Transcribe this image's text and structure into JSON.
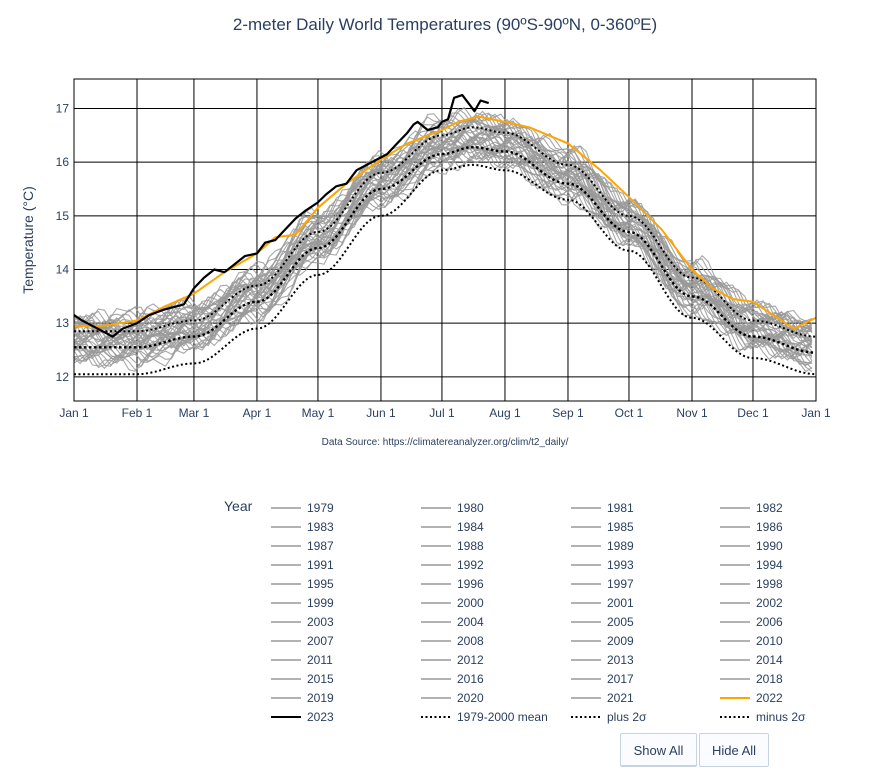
{
  "chart_data": {
    "type": "line",
    "title": "2-meter Daily World Temperatures (90ºS-90ºN, 0-360ºE)",
    "ylabel": "Temperature (°C)",
    "xlabel": "",
    "source_note": "Data Source: https://climatereanalyzer.org/clim/t2_daily/",
    "x_ticks": [
      "Jan 1",
      "Feb 1",
      "Mar 1",
      "Apr 1",
      "May 1",
      "Jun 1",
      "Jul 1",
      "Aug 1",
      "Sep 1",
      "Oct 1",
      "Nov 1",
      "Dec 1",
      "Jan 1"
    ],
    "x_tick_days": [
      1,
      32,
      60,
      91,
      121,
      152,
      182,
      213,
      244,
      274,
      305,
      335,
      366
    ],
    "y_ticks": [
      12,
      13,
      14,
      15,
      16,
      17
    ],
    "xlim": [
      1,
      366
    ],
    "ylim": [
      11.55,
      17.55
    ],
    "grid": true,
    "legend_placement": "bottom",
    "x_unit": "day of year",
    "series": [
      {
        "name": "1979-2000 mean",
        "x": [
          1,
          32,
          60,
          91,
          121,
          152,
          182,
          197,
          213,
          244,
          274,
          305,
          335,
          366
        ],
        "y": [
          12.55,
          12.55,
          12.75,
          13.4,
          14.4,
          15.5,
          16.15,
          16.28,
          16.2,
          15.6,
          14.7,
          13.5,
          12.75,
          12.45
        ]
      },
      {
        "name": "plus 2σ",
        "x": [
          1,
          32,
          60,
          91,
          121,
          152,
          182,
          197,
          213,
          244,
          274,
          305,
          335,
          366
        ],
        "y": [
          12.85,
          12.85,
          13.05,
          13.7,
          14.7,
          15.8,
          16.5,
          16.65,
          16.55,
          15.95,
          15.0,
          13.85,
          13.05,
          12.75
        ]
      },
      {
        "name": "minus 2σ",
        "x": [
          1,
          32,
          60,
          91,
          121,
          152,
          182,
          197,
          213,
          244,
          274,
          305,
          335,
          366
        ],
        "y": [
          12.05,
          12.05,
          12.25,
          12.9,
          13.9,
          15.0,
          15.85,
          15.95,
          15.85,
          15.3,
          14.35,
          13.1,
          12.35,
          12.05
        ]
      },
      {
        "name": "2022",
        "x": [
          1,
          15,
          32,
          45,
          60,
          75,
          91,
          100,
          110,
          121,
          135,
          152,
          165,
          182,
          190,
          200,
          213,
          225,
          244,
          260,
          274,
          290,
          305,
          315,
          325,
          335,
          345,
          355,
          366
        ],
        "y": [
          12.95,
          12.95,
          13.05,
          13.3,
          13.55,
          13.95,
          14.3,
          14.6,
          14.65,
          15.15,
          15.6,
          16.05,
          16.35,
          16.6,
          16.75,
          16.85,
          16.75,
          16.65,
          16.35,
          15.85,
          15.35,
          14.75,
          14.0,
          13.65,
          13.45,
          13.4,
          13.15,
          12.9,
          13.1
        ]
      },
      {
        "name": "2023",
        "x": [
          1,
          5,
          10,
          15,
          20,
          25,
          32,
          38,
          45,
          50,
          55,
          60,
          65,
          70,
          75,
          80,
          85,
          91,
          95,
          100,
          105,
          110,
          115,
          121,
          125,
          130,
          135,
          140,
          145,
          150,
          155,
          160,
          165,
          168,
          170,
          175,
          180,
          182,
          185,
          188,
          192,
          195,
          198,
          201,
          205
        ],
        "y": [
          13.15,
          13.05,
          12.95,
          12.85,
          12.75,
          12.9,
          13.0,
          13.15,
          13.25,
          13.3,
          13.35,
          13.65,
          13.85,
          14.0,
          13.95,
          14.1,
          14.25,
          14.3,
          14.5,
          14.55,
          14.75,
          14.95,
          15.1,
          15.25,
          15.4,
          15.55,
          15.6,
          15.85,
          15.95,
          16.05,
          16.15,
          16.35,
          16.55,
          16.7,
          16.75,
          16.6,
          16.65,
          16.75,
          16.8,
          17.2,
          17.25,
          17.1,
          16.95,
          17.15,
          17.1
        ]
      }
    ],
    "background_years": [
      "1979",
      "1980",
      "1981",
      "1982",
      "1983",
      "1984",
      "1985",
      "1986",
      "1987",
      "1988",
      "1989",
      "1990",
      "1991",
      "1992",
      "1993",
      "1994",
      "1995",
      "1996",
      "1997",
      "1998",
      "1999",
      "2000",
      "2001",
      "2002",
      "2003",
      "2004",
      "2005",
      "2006",
      "2007",
      "2008",
      "2009",
      "2010",
      "2011",
      "2012",
      "2013",
      "2014",
      "2015",
      "2016",
      "2017",
      "2018",
      "2019",
      "2020",
      "2021"
    ]
  },
  "colors": {
    "year": "#999999",
    "year_2022": "#ffa500",
    "year_2023": "#000000",
    "stat": "#000000"
  },
  "legend": {
    "title": "Year",
    "items": [
      {
        "label": "1979",
        "style": "year"
      },
      {
        "label": "1980",
        "style": "year"
      },
      {
        "label": "1981",
        "style": "year"
      },
      {
        "label": "1982",
        "style": "year"
      },
      {
        "label": "1983",
        "style": "year"
      },
      {
        "label": "1984",
        "style": "year"
      },
      {
        "label": "1985",
        "style": "year"
      },
      {
        "label": "1986",
        "style": "year"
      },
      {
        "label": "1987",
        "style": "year"
      },
      {
        "label": "1988",
        "style": "year"
      },
      {
        "label": "1989",
        "style": "year"
      },
      {
        "label": "1990",
        "style": "year"
      },
      {
        "label": "1991",
        "style": "year"
      },
      {
        "label": "1992",
        "style": "year"
      },
      {
        "label": "1993",
        "style": "year"
      },
      {
        "label": "1994",
        "style": "year"
      },
      {
        "label": "1995",
        "style": "year"
      },
      {
        "label": "1996",
        "style": "year"
      },
      {
        "label": "1997",
        "style": "year"
      },
      {
        "label": "1998",
        "style": "year"
      },
      {
        "label": "1999",
        "style": "year"
      },
      {
        "label": "2000",
        "style": "year"
      },
      {
        "label": "2001",
        "style": "year"
      },
      {
        "label": "2002",
        "style": "year"
      },
      {
        "label": "2003",
        "style": "year"
      },
      {
        "label": "2004",
        "style": "year"
      },
      {
        "label": "2005",
        "style": "year"
      },
      {
        "label": "2006",
        "style": "year"
      },
      {
        "label": "2007",
        "style": "year"
      },
      {
        "label": "2008",
        "style": "year"
      },
      {
        "label": "2009",
        "style": "year"
      },
      {
        "label": "2010",
        "style": "year"
      },
      {
        "label": "2011",
        "style": "year"
      },
      {
        "label": "2012",
        "style": "year"
      },
      {
        "label": "2013",
        "style": "year"
      },
      {
        "label": "2014",
        "style": "year"
      },
      {
        "label": "2015",
        "style": "year"
      },
      {
        "label": "2016",
        "style": "year"
      },
      {
        "label": "2017",
        "style": "year"
      },
      {
        "label": "2018",
        "style": "year"
      },
      {
        "label": "2019",
        "style": "year"
      },
      {
        "label": "2020",
        "style": "year"
      },
      {
        "label": "2021",
        "style": "year"
      },
      {
        "label": "2022",
        "style": "year_2022"
      },
      {
        "label": "2023",
        "style": "year_2023"
      },
      {
        "label": "1979-2000 mean",
        "style": "stat"
      },
      {
        "label": "plus 2σ",
        "style": "stat"
      },
      {
        "label": "minus 2σ",
        "style": "stat"
      }
    ]
  },
  "buttons": {
    "show_all": "Show All",
    "hide_all": "Hide All"
  }
}
